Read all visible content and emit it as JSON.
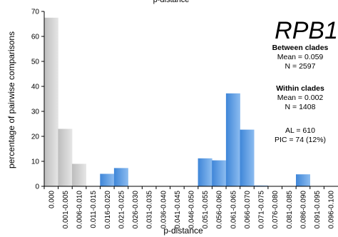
{
  "chart_data": {
    "type": "bar",
    "title": "p-distance",
    "gene": "RPB1",
    "xlabel": "p-distance",
    "ylabel": "percentage of pairwise comparisons",
    "ylim": [
      0,
      70
    ],
    "yticks": [
      0,
      10,
      20,
      30,
      40,
      50,
      60,
      70
    ],
    "grid": false,
    "categories": [
      "0.000",
      "0.001-0.005",
      "0.006-0.010",
      "0.011-0.015",
      "0.016-0.020",
      "0.021-0.025",
      "0.026-0.030",
      "0.031-0.035",
      "0.036-0.040",
      "0.041-0.045",
      "0.046-0.050",
      "0.051-0.055",
      "0.056-0.060",
      "0.061-0.065",
      "0.066-0.070",
      "0.071-0.075",
      "0.076-0.080",
      "0.081-0.085",
      "0.086-0.090",
      "0.091-0.095",
      "0.096-0.100"
    ],
    "series": [
      {
        "group": "within",
        "color": "#d4d4d4",
        "values": [
          67.5,
          23,
          9,
          0,
          0,
          0,
          0,
          0,
          0,
          0,
          0,
          0,
          0,
          0,
          0,
          0,
          0,
          0,
          0,
          0,
          0
        ]
      },
      {
        "group": "between",
        "color": "#5b9be0",
        "values": [
          0,
          0,
          0,
          0,
          5,
          7.3,
          0,
          0,
          0,
          0,
          0,
          11.2,
          10.4,
          37.2,
          22.7,
          0.3,
          0,
          0,
          4.8,
          0,
          0
        ]
      }
    ],
    "stats": {
      "between_heading": "Between clades",
      "between_mean": "Mean = 0.059",
      "between_n": "N = 2597",
      "within_heading": "Within clades",
      "within_mean": "Mean = 0.002",
      "within_n": "N = 1408",
      "al": "AL = 610",
      "pic": "PIC = 74 (12%)"
    }
  }
}
